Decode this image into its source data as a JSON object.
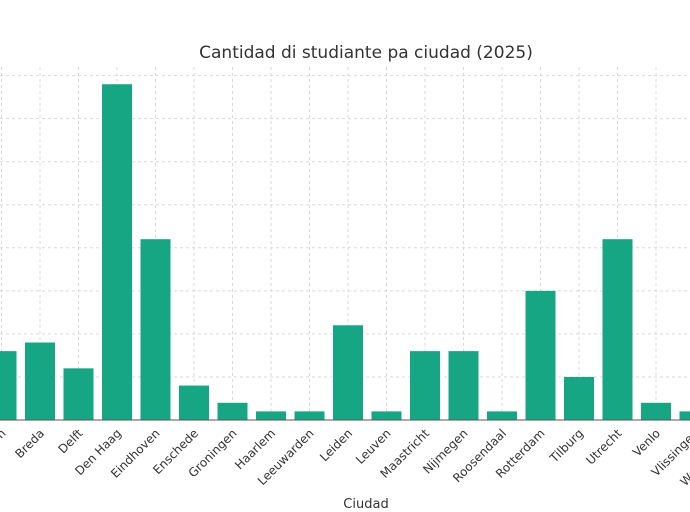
{
  "chart_data": {
    "type": "bar",
    "title": "Cantidad di studiante pa ciudad (2025)",
    "xlabel": "Ciudad",
    "ylabel": "",
    "categories": [
      "Amsterdam",
      "Breda",
      "Delft",
      "Den Haag",
      "Eindhoven",
      "Enschede",
      "Groningen",
      "Haarlem",
      "Leeuwarden",
      "Leiden",
      "Leuven",
      "Maastricht",
      "Nijmegen",
      "Roosendaal",
      "Rotterdam",
      "Tilburg",
      "Utrecht",
      "Venlo",
      "Vlissingen",
      "Wageningen"
    ],
    "values": [
      8,
      9,
      6,
      39,
      21,
      4,
      2,
      1,
      1,
      11,
      1,
      8,
      8,
      1,
      15,
      5,
      21,
      2,
      1,
      1
    ],
    "ylim": [
      0,
      41
    ],
    "grid": true,
    "color": "#17a683"
  }
}
